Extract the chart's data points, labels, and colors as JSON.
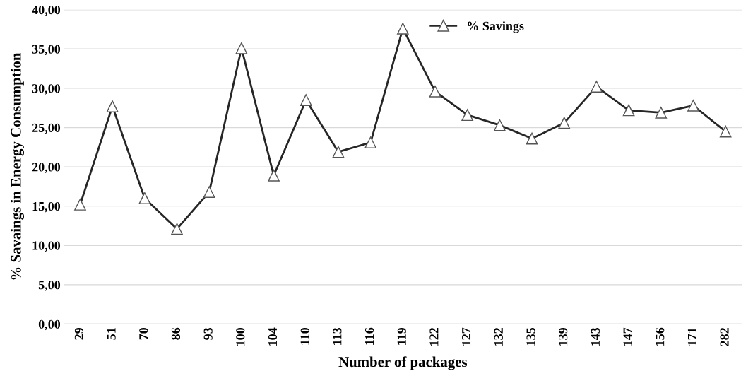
{
  "chart_data": {
    "type": "line",
    "xlabel": "Number of packages",
    "ylabel": "% Savaings in Energy Consumption",
    "categories": [
      "29",
      "51",
      "70",
      "86",
      "93",
      "100",
      "104",
      "110",
      "113",
      "116",
      "119",
      "122",
      "127",
      "132",
      "135",
      "139",
      "143",
      "147",
      "156",
      "171",
      "282"
    ],
    "series": [
      {
        "name": "% Savings",
        "color": "#262626",
        "values": [
          15.2,
          27.7,
          16.0,
          12.1,
          16.8,
          35.1,
          18.9,
          28.5,
          21.9,
          23.1,
          37.6,
          29.6,
          26.6,
          25.3,
          23.6,
          25.6,
          30.2,
          27.2,
          26.9,
          27.8,
          24.5
        ]
      }
    ],
    "ylim": [
      0,
      40
    ],
    "yticks": [
      {
        "value": 0,
        "label": "0,00"
      },
      {
        "value": 5,
        "label": "5,00"
      },
      {
        "value": 10,
        "label": "10,00"
      },
      {
        "value": 15,
        "label": "15,00"
      },
      {
        "value": 20,
        "label": "20,00"
      },
      {
        "value": 25,
        "label": "25,00"
      },
      {
        "value": 30,
        "label": "30,00"
      },
      {
        "value": 35,
        "label": "35,00"
      },
      {
        "value": 40,
        "label": "40,00"
      }
    ],
    "grid": "y",
    "legend": "top",
    "marker": "triangle",
    "line_style": "solid"
  }
}
